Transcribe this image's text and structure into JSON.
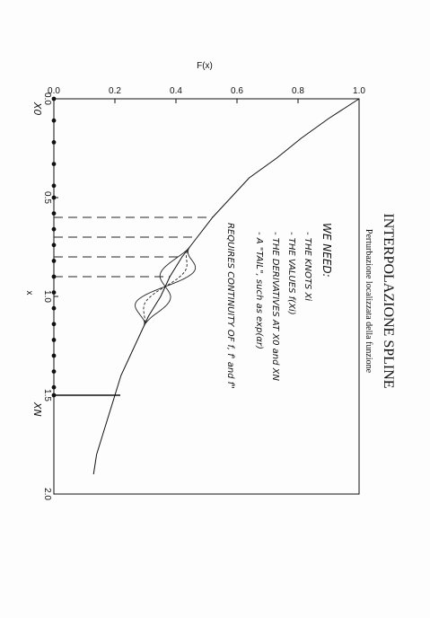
{
  "chart_data": {
    "type": "line",
    "title": "INTERPOLAZIONE SPLINE",
    "subtitle": "Perturbazione localizzata della funzione",
    "xlabel": "x",
    "ylabel": "F(x)",
    "xlim": [
      0.0,
      2.0
    ],
    "ylim": [
      0.0,
      1.0
    ],
    "x_ticks": [
      "0.0",
      "0.5",
      "1.0",
      "1.5",
      "2.0"
    ],
    "y_ticks": [
      "0.0",
      "0.2",
      "0.4",
      "0.6",
      "0.8",
      "1.0"
    ],
    "grid": false,
    "curve": {
      "x": [
        0.0,
        0.1,
        0.2,
        0.3,
        0.4,
        0.5,
        0.6,
        0.7,
        0.8,
        0.9,
        1.0,
        1.1,
        1.2,
        1.3,
        1.4,
        1.5,
        1.6,
        1.7,
        1.8,
        1.9
      ],
      "y": [
        1.0,
        0.9,
        0.81,
        0.73,
        0.64,
        0.58,
        0.52,
        0.47,
        0.42,
        0.38,
        0.35,
        0.31,
        0.28,
        0.25,
        0.22,
        0.2,
        0.18,
        0.16,
        0.14,
        0.13
      ]
    },
    "knots_x": [
      0.0,
      0.11,
      0.22,
      0.33,
      0.44,
      0.5,
      0.58,
      0.66,
      0.74,
      0.82,
      0.9,
      0.98,
      1.06,
      1.14,
      1.22,
      1.3,
      1.38,
      1.46,
      1.5
    ],
    "dashed_x": [
      0.6,
      0.7,
      0.8,
      0.9
    ],
    "x0_label": "X0",
    "xn_label": "XN",
    "xn_x": 1.5,
    "perturbation": {
      "x_start": 0.75,
      "x_end": 1.15,
      "amplitudes": [
        0.09,
        0.05,
        -0.05
      ]
    },
    "annotations": [
      "WE NEED:",
      "- THE KNOTS   Xi",
      "- THE VALUES  f(Xi)",
      "- THE DERIVATIVES AT X0 and XN",
      "- A \"TAIL\", such as  exp(αr)",
      "REQUIRES CONTINUITY OF f, f' and f\""
    ]
  }
}
